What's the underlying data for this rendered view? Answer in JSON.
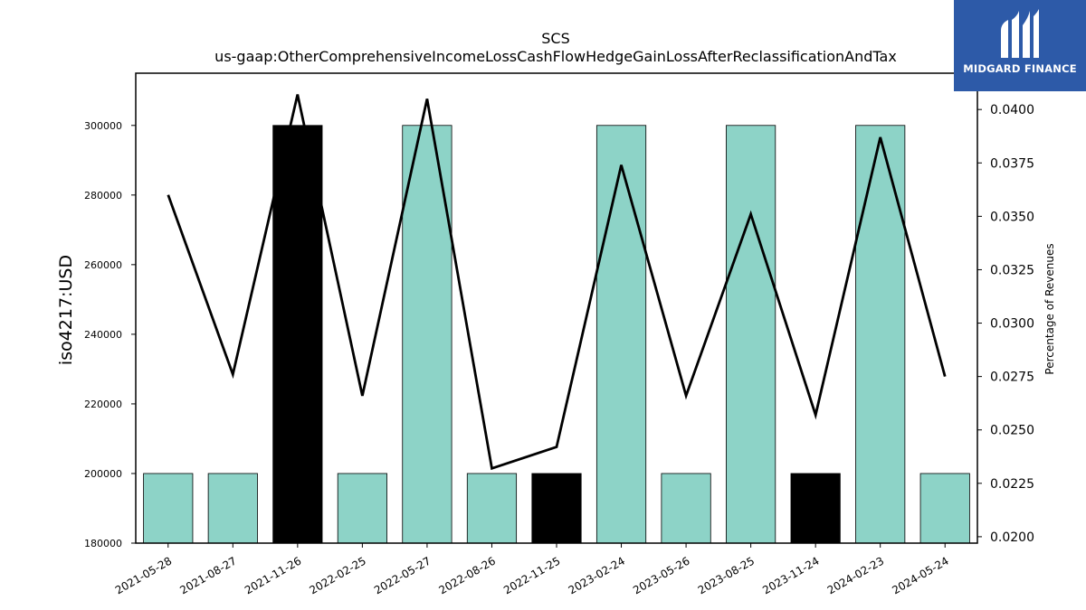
{
  "chart_data": {
    "type": "bar",
    "title": "SCS",
    "subtitle": "us-gaap:OtherComprehensiveIncomeLossCashFlowHedgeGainLossAfterReclassificationAndTax",
    "ylabel": "iso4217:USD",
    "y2label": "Percentage of Revenues",
    "ylim": [
      180000,
      315000
    ],
    "y2lim": [
      0.0197,
      0.0417
    ],
    "yticks": [
      "180000",
      "200000",
      "220000",
      "240000",
      "260000",
      "280000",
      "300000"
    ],
    "y2ticks": [
      "0.0200",
      "0.0225",
      "0.0250",
      "0.0275",
      "0.0300",
      "0.0325",
      "0.0350",
      "0.0375",
      "0.0400"
    ],
    "categories": [
      "2021-05-28",
      "2021-08-27",
      "2021-11-26",
      "2022-02-25",
      "2022-05-27",
      "2022-08-26",
      "2022-11-25",
      "2023-02-24",
      "2023-05-26",
      "2023-08-25",
      "2023-11-24",
      "2024-02-23",
      "2024-05-24"
    ],
    "series": [
      {
        "type": "bar",
        "values": [
          200000,
          200000,
          300000,
          200000,
          300000,
          200000,
          200000,
          300000,
          200000,
          300000,
          200000,
          300000,
          200000
        ],
        "colors": [
          "#8dd3c7",
          "#8dd3c7",
          "#000000",
          "#8dd3c7",
          "#8dd3c7",
          "#8dd3c7",
          "#000000",
          "#8dd3c7",
          "#8dd3c7",
          "#8dd3c7",
          "#000000",
          "#8dd3c7",
          "#8dd3c7"
        ]
      },
      {
        "type": "line",
        "axis": "right",
        "color": "#000000",
        "values": [
          0.036,
          0.0276,
          0.0407,
          0.0266,
          0.0405,
          0.0232,
          0.0242,
          0.0374,
          0.0266,
          0.0351,
          0.0257,
          0.0387,
          0.0275
        ]
      }
    ],
    "grid": false
  },
  "logo": {
    "text": "MIDGARD FINANCE",
    "background": "#2d5aa8"
  }
}
